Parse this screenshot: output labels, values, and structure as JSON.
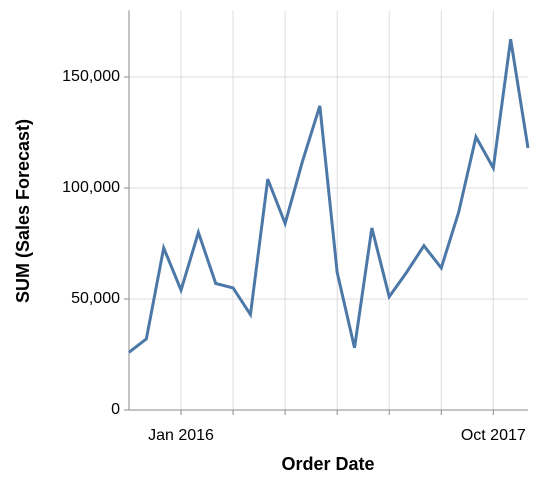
{
  "chart_data": {
    "type": "line",
    "categories": [
      null,
      null,
      null,
      "Jan 2016",
      null,
      null,
      null,
      null,
      null,
      null,
      null,
      null,
      null,
      null,
      null,
      null,
      null,
      null,
      null,
      null,
      null,
      "Oct 2017",
      null,
      null
    ],
    "series": [
      {
        "name": "SUM (Sales Forecast)",
        "color": "#4c78a8",
        "values": [
          26000,
          32000,
          73000,
          54000,
          80000,
          57000,
          55000,
          43000,
          104000,
          84000,
          112000,
          137000,
          62000,
          28000,
          82000,
          51000,
          62000,
          74000,
          64000,
          89000,
          123000,
          109000,
          167000,
          118000
        ]
      }
    ],
    "x_label": "Order Date",
    "y_label": "SUM (Sales Forecast)",
    "ylim": [
      0,
      180000
    ],
    "yticks": [
      {
        "value": 0,
        "label": "0"
      },
      {
        "value": 50000,
        "label": "50,000"
      },
      {
        "value": 100000,
        "label": "100,000"
      },
      {
        "value": 150000,
        "label": "150,000"
      }
    ],
    "grid": true
  }
}
